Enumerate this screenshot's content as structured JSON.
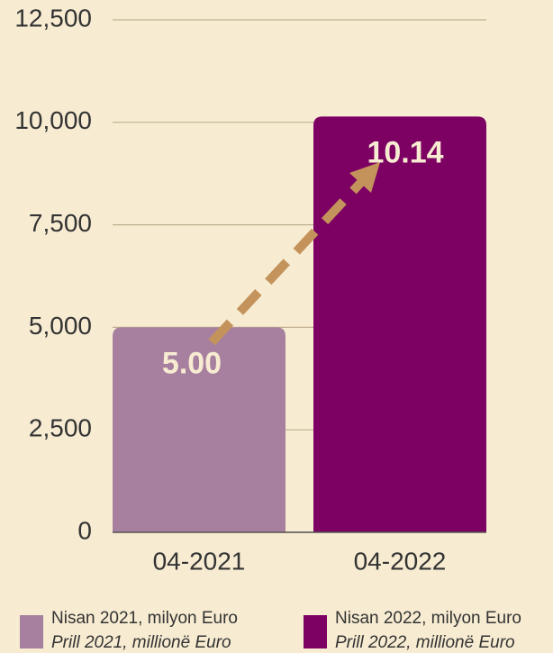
{
  "chart_data": {
    "type": "bar",
    "categories": [
      "04-2021",
      "04-2022"
    ],
    "series": [
      {
        "name": "Nisan 2021, milyon Euro",
        "subtitle": "Prill 2021, millionë Euro",
        "color": "#a8809f",
        "values": [
          5000,
          null
        ],
        "value_labels": [
          "5.00",
          null
        ]
      },
      {
        "name": "Nisan 2022, milyon Euro",
        "subtitle": "Prill 2022, millionë Euro",
        "color": "#7d0063",
        "values": [
          null,
          10140
        ],
        "value_labels": [
          null,
          "10.14"
        ]
      }
    ],
    "ylim": [
      0,
      12500
    ],
    "yticks": [
      0,
      {
        "value": 2500,
        "label": "2,500"
      },
      {
        "value": 5000,
        "label": "5,000"
      },
      {
        "value": 7500,
        "label": "7,500"
      },
      {
        "value": 10000,
        "label": "10,000"
      },
      {
        "value": 12500,
        "label": "12,500"
      }
    ],
    "grid": true
  }
}
